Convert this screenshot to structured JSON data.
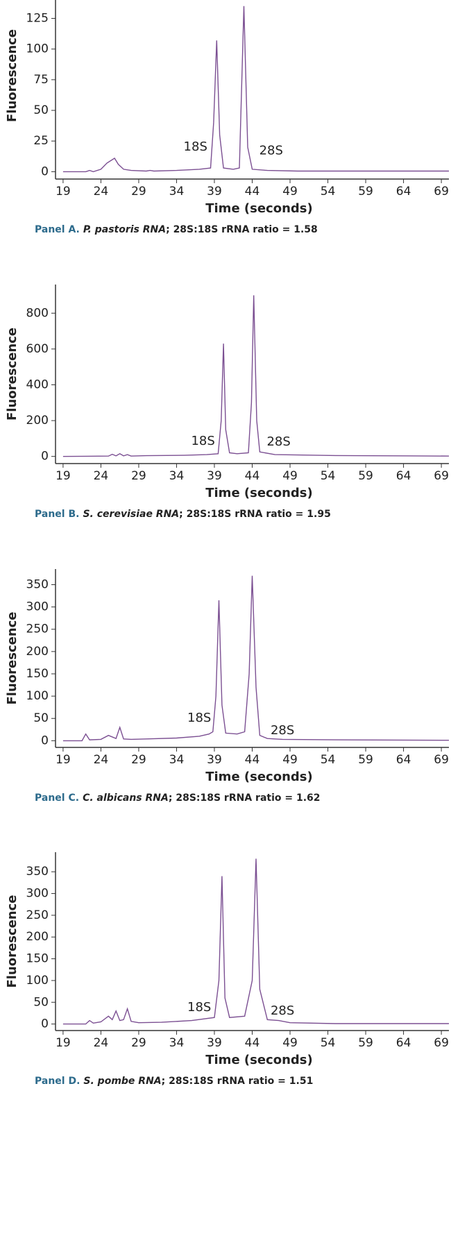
{
  "chart_data": [
    {
      "type": "line",
      "ylabel": "Fluorescence",
      "xlabel": "Time (seconds)",
      "caption": {
        "label": "Panel A.",
        "species": "P. pastoris RNA",
        "text": "; 28S:18S rRNA ratio = 1.58"
      },
      "x": [
        19,
        22,
        22.5,
        23,
        24,
        24.8,
        25.3,
        25.8,
        26.3,
        27,
        28,
        30,
        30.5,
        31,
        34,
        37,
        38.5,
        38.9,
        39.3,
        39.7,
        40.2,
        41.5,
        42.3,
        42.9,
        43.4,
        44,
        46,
        50,
        60,
        70
      ],
      "series": [
        {
          "color": "#7b4f92",
          "values": [
            0,
            0,
            1,
            0,
            2,
            7,
            9,
            11,
            6,
            2,
            1,
            0.5,
            1,
            0.5,
            1,
            2,
            3,
            40,
            107,
            30,
            3,
            2,
            3,
            135,
            20,
            2,
            1,
            0.5,
            0.5,
            0.5
          ]
        }
      ],
      "xlim": [
        18,
        70
      ],
      "xticks": [
        19,
        24,
        29,
        34,
        39,
        44,
        49,
        54,
        59,
        64,
        69
      ],
      "ylim": [
        -6,
        140
      ],
      "yticks": [
        0,
        25,
        50,
        75,
        100,
        125
      ],
      "annotations": [
        {
          "text": "18S",
          "x": 36.5,
          "y": 20
        },
        {
          "text": "28S",
          "x": 46.5,
          "y": 17
        }
      ]
    },
    {
      "type": "line",
      "ylabel": "Fluorescence",
      "xlabel": "Time (seconds)",
      "caption": {
        "label": "Panel B.",
        "species": "S. cerevisiae RNA",
        "text": "; 28S:18S rRNA ratio = 1.95"
      },
      "x": [
        19,
        25,
        25.5,
        26,
        26.5,
        27,
        27.5,
        28,
        30,
        35,
        38,
        39.5,
        39.9,
        40.2,
        40.5,
        41,
        42,
        43.5,
        43.9,
        44.2,
        44.6,
        45,
        47,
        55,
        65,
        70
      ],
      "series": [
        {
          "color": "#7b4f92",
          "values": [
            0,
            2,
            12,
            3,
            15,
            3,
            10,
            2,
            4,
            6,
            10,
            15,
            200,
            630,
            150,
            20,
            15,
            20,
            300,
            900,
            200,
            25,
            10,
            5,
            3,
            2
          ]
        }
      ],
      "xlim": [
        18,
        70
      ],
      "xticks": [
        19,
        24,
        29,
        34,
        39,
        44,
        49,
        54,
        59,
        64,
        69
      ],
      "ylim": [
        -40,
        960
      ],
      "yticks": [
        0,
        200,
        400,
        600,
        800
      ],
      "annotations": [
        {
          "text": "18S",
          "x": 37.5,
          "y": 85
        },
        {
          "text": "28S",
          "x": 47.5,
          "y": 80
        }
      ]
    },
    {
      "type": "line",
      "ylabel": "Fluorescence",
      "xlabel": "Time (seconds)",
      "caption": {
        "label": "Panel C.",
        "species": "C. albicans RNA",
        "text": "; 28S:18S rRNA ratio = 1.62"
      },
      "x": [
        19,
        21.5,
        22,
        22.5,
        24,
        25,
        26,
        26.5,
        27,
        28,
        30,
        34,
        37,
        38.3,
        38.8,
        39.2,
        39.6,
        40,
        40.5,
        42,
        43,
        43.6,
        44,
        44.5,
        45,
        46,
        48,
        55,
        70
      ],
      "series": [
        {
          "color": "#7b4f92",
          "values": [
            0,
            0,
            15,
            2,
            3,
            12,
            5,
            30,
            4,
            3,
            4,
            6,
            10,
            15,
            20,
            100,
            315,
            80,
            17,
            15,
            20,
            150,
            370,
            120,
            12,
            5,
            3,
            2,
            1
          ]
        }
      ],
      "xlim": [
        18,
        70
      ],
      "xticks": [
        19,
        24,
        29,
        34,
        39,
        44,
        49,
        54,
        59,
        64,
        69
      ],
      "ylim": [
        -15,
        385
      ],
      "yticks": [
        0,
        50,
        100,
        150,
        200,
        250,
        300,
        350
      ],
      "annotations": [
        {
          "text": "18S",
          "x": 37,
          "y": 50
        },
        {
          "text": "28S",
          "x": 48,
          "y": 22
        }
      ]
    },
    {
      "type": "line",
      "ylabel": "Fluorescence",
      "xlabel": "Time (seconds)",
      "caption": {
        "label": "Panel D.",
        "species": "S. pombe RNA",
        "text": "; 28S:18S rRNA ratio = 1.51"
      },
      "x": [
        19,
        22,
        22.5,
        23,
        24,
        25,
        25.5,
        26,
        26.5,
        27,
        27.5,
        28,
        29,
        32,
        36,
        39,
        39.6,
        40,
        40.4,
        41,
        43,
        44,
        44.5,
        45,
        46,
        47.5,
        49,
        55,
        70
      ],
      "series": [
        {
          "color": "#7b4f92",
          "values": [
            0,
            0,
            8,
            2,
            5,
            18,
            10,
            30,
            8,
            10,
            35,
            6,
            3,
            4,
            8,
            15,
            100,
            340,
            60,
            15,
            18,
            100,
            380,
            80,
            10,
            8,
            3,
            1,
            1
          ]
        }
      ],
      "xlim": [
        18,
        70
      ],
      "xticks": [
        19,
        24,
        29,
        34,
        39,
        44,
        49,
        54,
        59,
        64,
        69
      ],
      "ylim": [
        -15,
        395
      ],
      "yticks": [
        0,
        50,
        100,
        150,
        200,
        250,
        300,
        350
      ],
      "annotations": [
        {
          "text": "18S",
          "x": 37,
          "y": 38
        },
        {
          "text": "28S",
          "x": 48,
          "y": 30
        }
      ]
    }
  ]
}
